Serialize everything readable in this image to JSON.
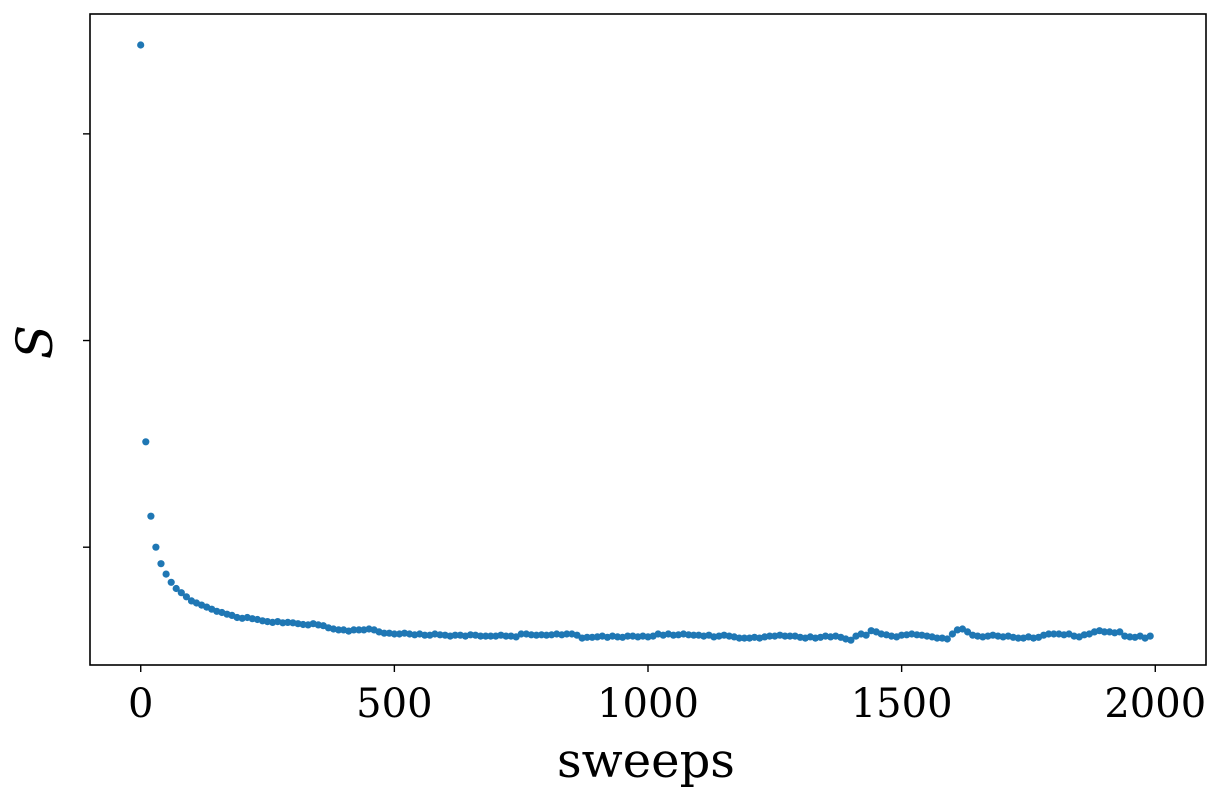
{
  "chart_data": {
    "type": "scatter",
    "title": "",
    "xlabel": "sweeps",
    "ylabel": "S",
    "xlim": [
      -100,
      2100
    ],
    "ylim": [
      -0.85,
      14.9
    ],
    "xticks": [
      0,
      500,
      1000,
      1500,
      2000
    ],
    "xtick_labels": [
      "0",
      "500",
      "1000",
      "1500",
      "2000"
    ],
    "yticks": [
      2,
      7,
      12
    ],
    "ytick_labels": [
      "",
      "",
      ""
    ],
    "grid": false,
    "legend": "none",
    "marker_color": "#1f77b4",
    "series": [
      {
        "name": "",
        "x": [
          0,
          10,
          20,
          30,
          40,
          50,
          60,
          70,
          80,
          90,
          100,
          110,
          120,
          130,
          140,
          150,
          160,
          170,
          180,
          190,
          200,
          210,
          220,
          230,
          240,
          250,
          260,
          270,
          280,
          290,
          300,
          310,
          320,
          330,
          340,
          350,
          360,
          370,
          380,
          390,
          400,
          410,
          420,
          430,
          440,
          450,
          460,
          470,
          480,
          490,
          500,
          510,
          520,
          530,
          540,
          550,
          560,
          570,
          580,
          590,
          600,
          610,
          620,
          630,
          640,
          650,
          660,
          670,
          680,
          690,
          700,
          710,
          720,
          730,
          740,
          750,
          760,
          770,
          780,
          790,
          800,
          810,
          820,
          830,
          840,
          850,
          860,
          870,
          880,
          890,
          900,
          910,
          920,
          930,
          940,
          950,
          960,
          970,
          980,
          990,
          1000,
          1010,
          1020,
          1030,
          1040,
          1050,
          1060,
          1070,
          1080,
          1090,
          1100,
          1110,
          1120,
          1130,
          1140,
          1150,
          1160,
          1170,
          1180,
          1190,
          1200,
          1210,
          1220,
          1230,
          1240,
          1250,
          1260,
          1270,
          1280,
          1290,
          1300,
          1310,
          1320,
          1330,
          1340,
          1350,
          1360,
          1370,
          1380,
          1390,
          1400,
          1410,
          1420,
          1430,
          1440,
          1450,
          1460,
          1470,
          1480,
          1490,
          1500,
          1510,
          1520,
          1530,
          1540,
          1550,
          1560,
          1570,
          1580,
          1590,
          1600,
          1610,
          1620,
          1630,
          1640,
          1650,
          1660,
          1670,
          1680,
          1690,
          1700,
          1710,
          1720,
          1730,
          1740,
          1750,
          1760,
          1770,
          1780,
          1790,
          1800,
          1810,
          1820,
          1830,
          1840,
          1850,
          1860,
          1870,
          1880,
          1890,
          1900,
          1910,
          1920,
          1930,
          1940,
          1950,
          1960,
          1970,
          1980,
          1990
        ],
        "y": [
          14.15,
          4.55,
          2.75,
          2.0,
          1.6,
          1.35,
          1.15,
          1.0,
          0.9,
          0.8,
          0.7,
          0.65,
          0.6,
          0.55,
          0.5,
          0.45,
          0.42,
          0.38,
          0.35,
          0.3,
          0.28,
          0.3,
          0.27,
          0.25,
          0.22,
          0.2,
          0.18,
          0.2,
          0.17,
          0.18,
          0.17,
          0.15,
          0.13,
          0.12,
          0.15,
          0.12,
          0.1,
          0.05,
          0.02,
          0.0,
          0.0,
          -0.03,
          0.0,
          0.0,
          0.0,
          0.02,
          0.0,
          -0.05,
          -0.08,
          -0.08,
          -0.1,
          -0.1,
          -0.08,
          -0.1,
          -0.12,
          -0.1,
          -0.13,
          -0.13,
          -0.1,
          -0.12,
          -0.13,
          -0.15,
          -0.13,
          -0.13,
          -0.15,
          -0.12,
          -0.13,
          -0.15,
          -0.15,
          -0.15,
          -0.15,
          -0.13,
          -0.15,
          -0.15,
          -0.17,
          -0.1,
          -0.1,
          -0.12,
          -0.13,
          -0.12,
          -0.13,
          -0.12,
          -0.1,
          -0.12,
          -0.1,
          -0.1,
          -0.13,
          -0.2,
          -0.18,
          -0.18,
          -0.17,
          -0.15,
          -0.18,
          -0.15,
          -0.17,
          -0.18,
          -0.15,
          -0.15,
          -0.17,
          -0.15,
          -0.17,
          -0.15,
          -0.1,
          -0.13,
          -0.1,
          -0.13,
          -0.12,
          -0.1,
          -0.12,
          -0.13,
          -0.13,
          -0.15,
          -0.13,
          -0.17,
          -0.15,
          -0.13,
          -0.15,
          -0.17,
          -0.2,
          -0.2,
          -0.2,
          -0.18,
          -0.2,
          -0.17,
          -0.15,
          -0.15,
          -0.13,
          -0.15,
          -0.15,
          -0.15,
          -0.18,
          -0.2,
          -0.17,
          -0.2,
          -0.18,
          -0.15,
          -0.17,
          -0.15,
          -0.18,
          -0.22,
          -0.25,
          -0.15,
          -0.1,
          -0.13,
          -0.02,
          -0.05,
          -0.1,
          -0.12,
          -0.15,
          -0.17,
          -0.13,
          -0.12,
          -0.1,
          -0.12,
          -0.13,
          -0.15,
          -0.17,
          -0.2,
          -0.2,
          -0.22,
          -0.1,
          0.0,
          0.02,
          -0.05,
          -0.13,
          -0.15,
          -0.17,
          -0.15,
          -0.13,
          -0.15,
          -0.17,
          -0.15,
          -0.18,
          -0.2,
          -0.2,
          -0.17,
          -0.2,
          -0.18,
          -0.13,
          -0.1,
          -0.1,
          -0.1,
          -0.12,
          -0.1,
          -0.15,
          -0.17,
          -0.12,
          -0.1,
          -0.05,
          -0.02,
          -0.05,
          -0.05,
          -0.07,
          -0.05,
          -0.15,
          -0.17,
          -0.18,
          -0.15,
          -0.2,
          -0.15
        ]
      }
    ]
  }
}
